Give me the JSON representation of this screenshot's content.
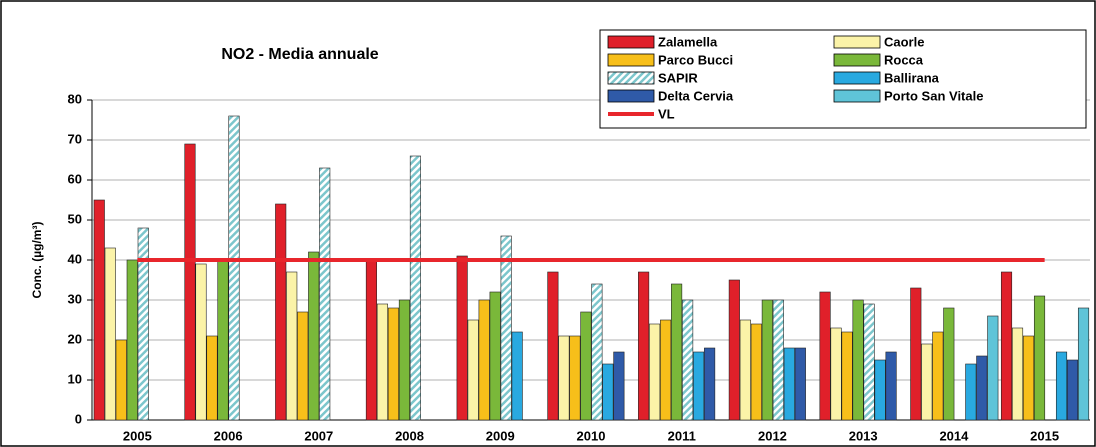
{
  "chart_data": {
    "type": "bar",
    "title": "NO2 - Media annuale",
    "y_label": "Conc. (µg/m³)",
    "categories": [
      "2005",
      "2006",
      "2007",
      "2008",
      "2009",
      "2010",
      "2011",
      "2012",
      "2013",
      "2014",
      "2015"
    ],
    "series": [
      {
        "name": "Zalamella",
        "color": "#e0202a",
        "values": [
          55,
          69,
          54,
          40,
          41,
          37,
          37,
          35,
          32,
          33,
          37
        ]
      },
      {
        "name": "Caorle",
        "color": "#fbf3a8",
        "values": [
          43,
          39,
          37,
          29,
          25,
          21,
          24,
          25,
          23,
          19,
          23
        ]
      },
      {
        "name": "Parco Bucci",
        "color": "#f7bf1a",
        "values": [
          20,
          21,
          27,
          28,
          30,
          21,
          25,
          24,
          22,
          22,
          21
        ]
      },
      {
        "name": "Rocca",
        "color": "#7ab83a",
        "values": [
          40,
          40,
          42,
          30,
          32,
          27,
          34,
          30,
          30,
          28,
          31
        ]
      },
      {
        "name": "SAPIR",
        "color": "#9fd7dc",
        "hatch": true,
        "values": [
          48,
          76,
          63,
          66,
          46,
          34,
          30,
          30,
          29,
          null,
          null
        ]
      },
      {
        "name": "Ballirana",
        "color": "#29a9e0",
        "values": [
          null,
          null,
          null,
          null,
          22,
          14,
          17,
          18,
          15,
          14,
          17
        ]
      },
      {
        "name": "Delta Cervia",
        "color": "#2f5aa8",
        "values": [
          null,
          null,
          null,
          null,
          null,
          17,
          18,
          18,
          17,
          16,
          15
        ]
      },
      {
        "name": "Porto San Vitale",
        "color": "#5fc4d8",
        "values": [
          null,
          null,
          null,
          null,
          null,
          null,
          null,
          null,
          null,
          26,
          28
        ]
      },
      {
        "name": "VL",
        "color": "#e8262c",
        "type": "line",
        "values": [
          40,
          40,
          40,
          40,
          40,
          40,
          40,
          40,
          40,
          40,
          40
        ]
      }
    ],
    "ylim": [
      0,
      80
    ],
    "yticks": [
      0,
      10,
      20,
      30,
      40,
      50,
      60,
      70,
      80
    ],
    "grid": true
  }
}
